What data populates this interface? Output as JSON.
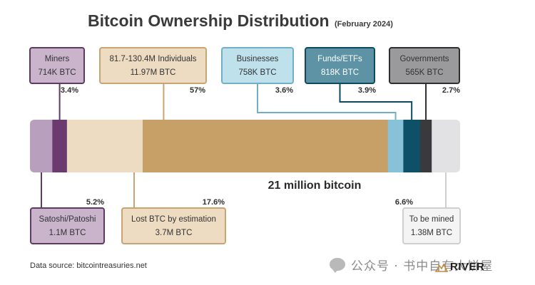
{
  "chart_data": {
    "type": "bar",
    "orientation": "horizontal-stacked",
    "title": "Bitcoin Ownership Distribution",
    "subtitle": "(February 2024)",
    "bar_label": "21 million bitcoin",
    "total_btc_millions": 21,
    "segments": [
      {
        "name": "Satoshi/Patoshi",
        "value": "1.1M BTC",
        "percent": 5.2,
        "percent_label": "5.2%",
        "color": "#b89fbd",
        "stroke": "#5e3a63",
        "callout": "below"
      },
      {
        "name": "Miners",
        "value": "714K BTC",
        "percent": 3.4,
        "percent_label": "3.4%",
        "color": "#6b3a6e",
        "stroke": "#5e3a63",
        "callout": "above"
      },
      {
        "name": "Lost BTC by estimation",
        "value": "3.7M BTC",
        "percent": 17.6,
        "percent_label": "17.6%",
        "color": "#eddcc2",
        "stroke": "#c7a472",
        "callout": "below"
      },
      {
        "name": "81.7-130.4M Individuals",
        "value": "11.97M BTC",
        "percent": 57,
        "percent_label": "57%",
        "color": "#c6a066",
        "stroke": "#c7a472",
        "callout": "above"
      },
      {
        "name": "Businesses",
        "value": "758K BTC",
        "percent": 3.6,
        "percent_label": "3.6%",
        "color": "#88c2d8",
        "stroke": "#6fb0c7",
        "callout": "above"
      },
      {
        "name": "Funds/ETFs",
        "value": "818K BTC",
        "percent": 3.9,
        "percent_label": "3.9%",
        "color": "#0d5068",
        "stroke": "#0d4a60",
        "callout": "above"
      },
      {
        "name": "Governments",
        "value": "565K BTC",
        "percent": 2.7,
        "percent_label": "2.7%",
        "color": "#3a3a3c",
        "stroke": "#2e2e30",
        "callout": "above"
      },
      {
        "name": "To be mined",
        "value": "1.38M BTC",
        "percent": 6.6,
        "percent_label": "6.6%",
        "color": "#e2e2e4",
        "stroke": "#cfcfd2",
        "callout": "below"
      }
    ],
    "box_fills": {
      "Satoshi/Patoshi": "#c9b4cc",
      "Miners": "#c9b4cc",
      "Lost BTC by estimation": "#eddcc2",
      "81.7-130.4M Individuals": "#eddcc2",
      "Businesses": "#bfe1ec",
      "Funds/ETFs": "#5e93a6",
      "Governments": "#9a9a9c",
      "To be mined": "#f4f4f5"
    },
    "box_text_colors": {
      "Funds/ETFs": "#ffffff"
    },
    "grid": false,
    "legend": "none (callout boxes)"
  },
  "footer": {
    "source": "Data source: bitcointreasuries.net",
    "watermark": "公众号 · 书中自有大饼屋",
    "watermark_icon": "chat-bubble-icon",
    "brand": "RIVER",
    "brand_icon": "mountain-logo-icon"
  }
}
